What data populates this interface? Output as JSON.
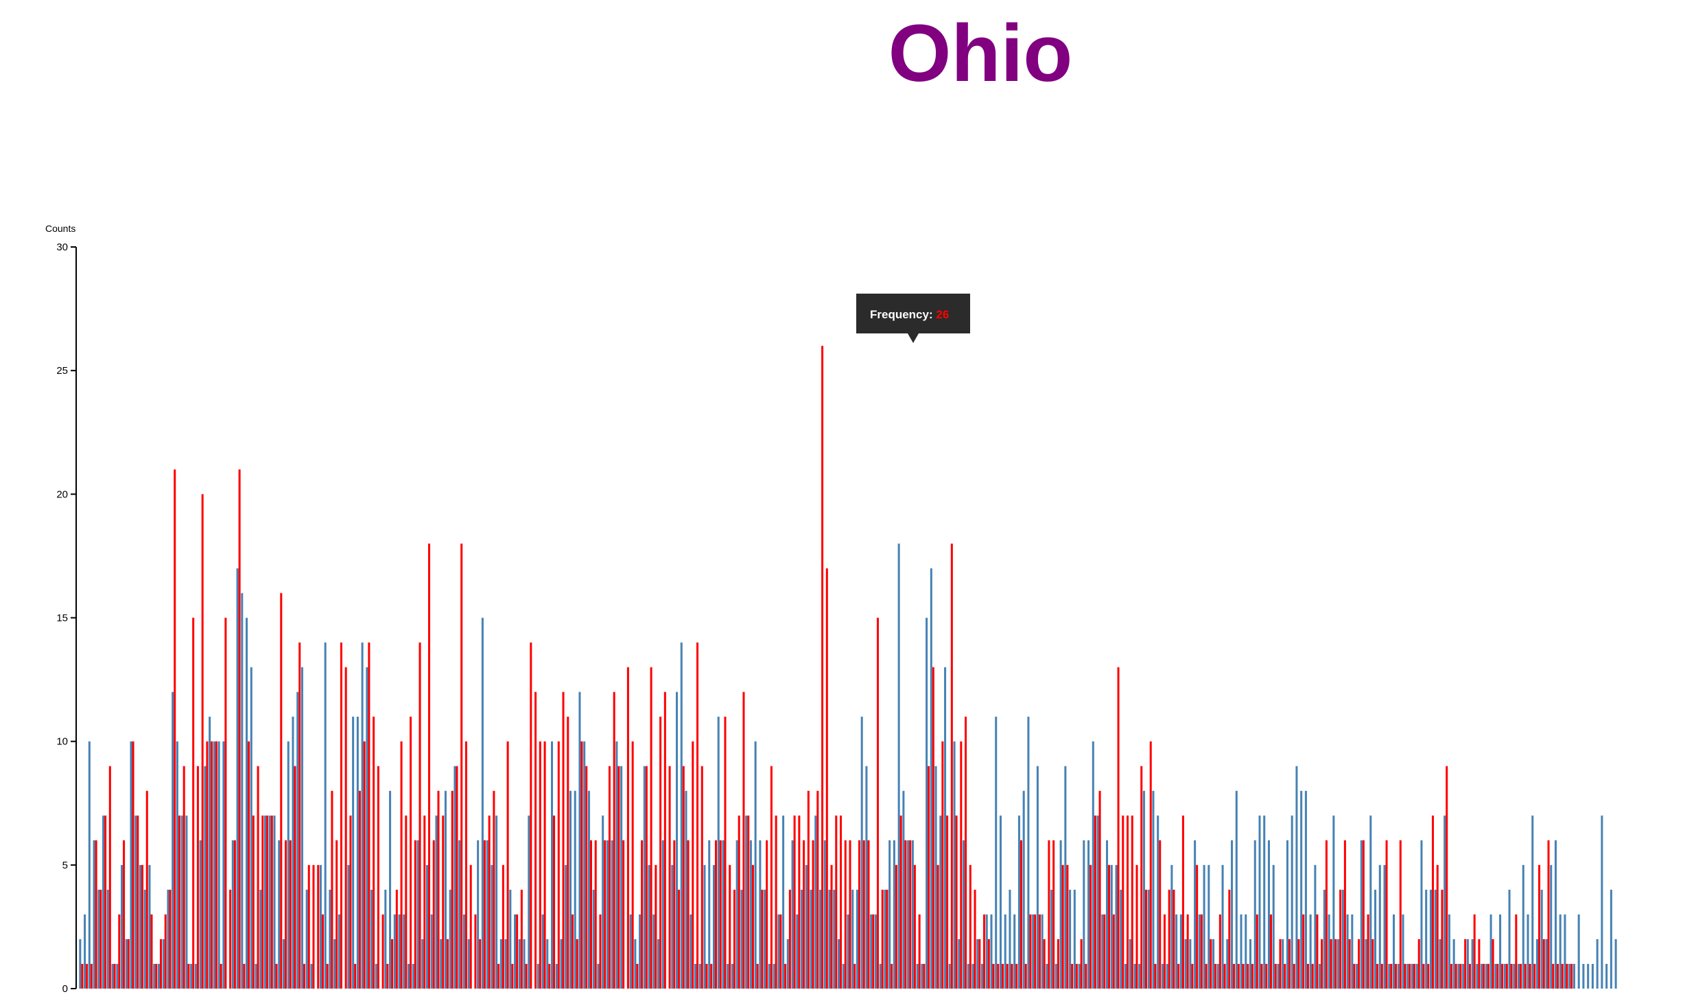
{
  "title": "Ohio",
  "colors": {
    "title": "#800080",
    "series_a": "#4682b4",
    "series_b": "#ff0000",
    "overlap": "#9e3a4a",
    "tooltip_bg": "#2b2b2b",
    "tooltip_value": "#ff0000"
  },
  "tooltip": {
    "label": "Frequency: ",
    "value": "26"
  },
  "chart_data": {
    "type": "bar",
    "ylabel": "Counts",
    "xlabel": "",
    "ylim": [
      0,
      30
    ],
    "yticks": [
      "0",
      "5",
      "10",
      "15",
      "20",
      "25",
      "30"
    ],
    "grid": false,
    "legend": "none",
    "series": [
      {
        "color": "#4682b4",
        "values": [
          2,
          3,
          10,
          6,
          4,
          7,
          4,
          1,
          1,
          5,
          2,
          10,
          7,
          5,
          4,
          5,
          1,
          1,
          2,
          4,
          12,
          10,
          7,
          7,
          1,
          1,
          6,
          9,
          11,
          10,
          10,
          10,
          0,
          6,
          17,
          16,
          15,
          13,
          1,
          4,
          7,
          7,
          7,
          6,
          2,
          10,
          11,
          12,
          13,
          4,
          1,
          0,
          5,
          14,
          4,
          2,
          3,
          0,
          5,
          11,
          11,
          14,
          13,
          4,
          1,
          0,
          4,
          8,
          3,
          3,
          3,
          1,
          1,
          6,
          2,
          5,
          3,
          7,
          2,
          8,
          4,
          9,
          6,
          3,
          2,
          0,
          6,
          15,
          6,
          5,
          7,
          2,
          2,
          4,
          3,
          2,
          2,
          7,
          0,
          1,
          3,
          2,
          10,
          1,
          2,
          5,
          8,
          8,
          12,
          10,
          8,
          4,
          1,
          7,
          6,
          6,
          10,
          9,
          0,
          3,
          2,
          3,
          9,
          5,
          3,
          2,
          6,
          0,
          5,
          12,
          14,
          8,
          3,
          1,
          1,
          5,
          6,
          5,
          11,
          6,
          1,
          1,
          6,
          4,
          7,
          6,
          10,
          6,
          4,
          1,
          1,
          3,
          7,
          2,
          6,
          3,
          4,
          5,
          4,
          7,
          4,
          6,
          4,
          4,
          2,
          1,
          3,
          4,
          4,
          11,
          9,
          3,
          3,
          1,
          4,
          6,
          6,
          18,
          8,
          6,
          6,
          1,
          1,
          15,
          17,
          9,
          7,
          13,
          1,
          10,
          2,
          6,
          1,
          1,
          2,
          1,
          3,
          3,
          11,
          7,
          3,
          4,
          3,
          7,
          8,
          11,
          3,
          9,
          3,
          1,
          4,
          1,
          6,
          9,
          4,
          4,
          1,
          6,
          6,
          10,
          7,
          3,
          6,
          5,
          5,
          4,
          1,
          2,
          1,
          1,
          8,
          4,
          8,
          7,
          1,
          1,
          5,
          3,
          3,
          2,
          2,
          6,
          3,
          5,
          5,
          2,
          1,
          5,
          2,
          6,
          8,
          3,
          3,
          2,
          6,
          7,
          7,
          6,
          5,
          1,
          2,
          6,
          7,
          9,
          8,
          8,
          3,
          5,
          1,
          4,
          3,
          7,
          2,
          4,
          3,
          3,
          1,
          6,
          2,
          7,
          4,
          5,
          5,
          1,
          3,
          1,
          3,
          1,
          1,
          1,
          6,
          4,
          4,
          4,
          2,
          7,
          3,
          2,
          1,
          1,
          2,
          2,
          1,
          1,
          1,
          3,
          1,
          3,
          1,
          4,
          1,
          1,
          5,
          3,
          7,
          2,
          4,
          2,
          5,
          6,
          3,
          3,
          1,
          1,
          3,
          1,
          1,
          1,
          2,
          7,
          1,
          4,
          2
        ]
      },
      {
        "color": "#ff0000",
        "values": [
          1,
          1,
          1,
          6,
          4,
          7,
          9,
          1,
          3,
          6,
          2,
          10,
          7,
          5,
          8,
          3,
          1,
          2,
          3,
          4,
          21,
          7,
          9,
          1,
          15,
          9,
          20,
          10,
          10,
          10,
          1,
          15,
          4,
          6,
          21,
          1,
          10,
          7,
          9,
          7,
          7,
          7,
          1,
          16,
          6,
          6,
          9,
          14,
          1,
          5,
          5,
          5,
          3,
          1,
          8,
          6,
          14,
          13,
          7,
          1,
          8,
          10,
          14,
          11,
          9,
          3,
          1,
          2,
          4,
          10,
          7,
          11,
          6,
          14,
          7,
          18,
          6,
          8,
          7,
          2,
          8,
          9,
          18,
          10,
          5,
          3,
          2,
          6,
          7,
          8,
          1,
          5,
          10,
          1,
          3,
          4,
          1,
          14,
          12,
          10,
          10,
          1,
          7,
          10,
          12,
          11,
          3,
          2,
          10,
          9,
          6,
          6,
          3,
          6,
          9,
          12,
          9,
          6,
          13,
          10,
          1,
          6,
          9,
          13,
          5,
          11,
          12,
          9,
          6,
          4,
          9,
          6,
          10,
          14,
          9,
          1,
          1,
          6,
          6,
          11,
          5,
          4,
          7,
          12,
          7,
          5,
          1,
          4,
          6,
          9,
          7,
          3,
          1,
          4,
          7,
          7,
          6,
          8,
          6,
          8,
          26,
          17,
          5,
          7,
          7,
          6,
          6,
          1,
          6,
          6,
          6,
          3,
          15,
          4,
          4,
          1,
          5,
          7,
          6,
          6,
          5,
          3,
          1,
          9,
          13,
          5,
          10,
          7,
          18,
          7,
          10,
          11,
          5,
          4,
          2,
          3,
          2,
          1,
          1,
          1,
          1,
          1,
          1,
          6,
          1,
          3,
          3,
          3,
          2,
          6,
          6,
          2,
          5,
          5,
          1,
          1,
          2,
          1,
          5,
          7,
          8,
          3,
          5,
          3,
          13,
          7,
          7,
          7,
          5,
          9,
          4,
          10,
          1,
          6,
          3,
          4,
          4,
          1,
          7,
          3,
          1,
          5,
          3,
          1,
          2,
          1,
          3,
          1,
          4,
          1,
          1,
          1,
          1,
          1,
          3,
          1,
          1,
          3,
          1,
          2,
          1,
          2,
          1,
          2,
          3,
          1,
          1,
          3,
          2,
          6,
          2,
          2,
          4,
          6,
          2,
          1,
          2,
          6,
          3,
          2,
          1,
          1,
          6,
          1,
          1,
          6,
          1,
          1,
          1,
          2,
          1,
          1,
          7,
          5,
          4,
          9,
          1,
          1,
          1,
          2,
          1,
          3,
          2,
          1,
          1,
          2,
          1,
          1,
          1,
          1,
          3,
          1,
          1,
          1,
          1,
          5,
          2,
          6,
          1,
          1,
          1,
          1,
          1
        ]
      }
    ]
  }
}
